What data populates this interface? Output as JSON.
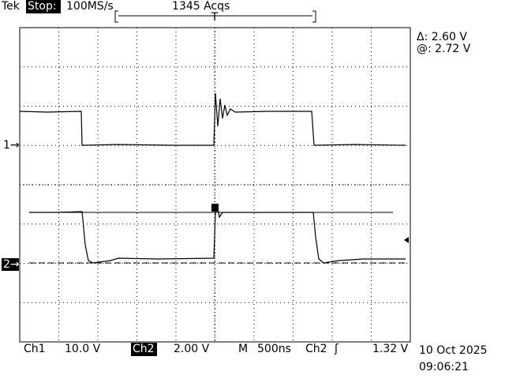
{
  "header": {
    "brand": "Tek",
    "status": "Stop:",
    "sample_rate": "100MS/s",
    "acquisitions": "1345 Acqs",
    "trigger_marker": "T"
  },
  "cursors": {
    "delta": "Δ: 2.60 V",
    "at": "@: 2.72 V"
  },
  "channel_markers": {
    "ch1": "1→",
    "ch2": "2→"
  },
  "footer": {
    "ch1_label": "Ch1",
    "ch1_scale": "10.0 V",
    "ch2_label": "Ch2",
    "ch2_scale": "2.00 V",
    "timebase_label": "M",
    "timebase": "500ns",
    "trigger_source": "Ch2",
    "trigger_slope": "ʃ",
    "trigger_level": "1.32 V",
    "date": "10 Oct 2025",
    "time": "09:06:21"
  }
}
